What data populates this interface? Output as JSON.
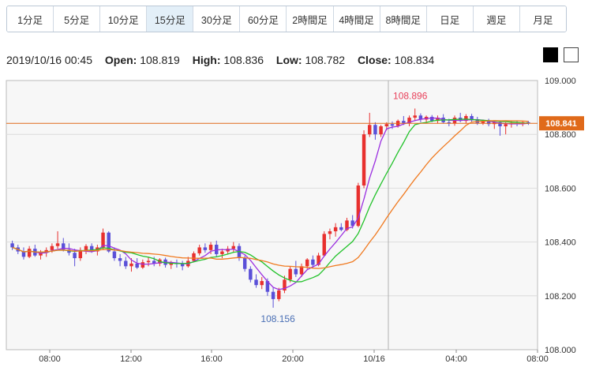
{
  "tabs": [
    {
      "label": "1分足",
      "active": false
    },
    {
      "label": "5分足",
      "active": false
    },
    {
      "label": "10分足",
      "active": false
    },
    {
      "label": "15分足",
      "active": true
    },
    {
      "label": "30分足",
      "active": false
    },
    {
      "label": "60分足",
      "active": false
    },
    {
      "label": "2時間足",
      "active": false
    },
    {
      "label": "4時間足",
      "active": false
    },
    {
      "label": "8時間足",
      "active": false
    },
    {
      "label": "日足",
      "active": false
    },
    {
      "label": "週足",
      "active": false
    },
    {
      "label": "月足",
      "active": false
    }
  ],
  "ohlc": {
    "datetime": "2019/10/16 00:45",
    "open_label": "Open:",
    "open": "108.819",
    "high_label": "High:",
    "high": "108.836",
    "low_label": "Low:",
    "low": "108.782",
    "close_label": "Close:",
    "close": "108.834"
  },
  "theme_buttons": [
    "black-theme",
    "white-theme"
  ],
  "chart_data": {
    "type": "candlestick",
    "y_ticks": [
      "109.000",
      "108.800",
      "108.600",
      "108.400",
      "108.200",
      "108.000"
    ],
    "ylim": [
      108.0,
      109.0
    ],
    "x_ticks": [
      "08:00",
      "12:00",
      "16:00",
      "20:00",
      "10/16",
      "04:00",
      "08:00"
    ],
    "current_price": "108.841",
    "max_label": "108.896",
    "min_label": "108.156",
    "colors": {
      "up": "#e8302e",
      "down": "#5a50d8",
      "ma_short": "#9b2fe0",
      "ma_mid": "#22c22a",
      "ma_long": "#f07a20",
      "price_line": "#e06a1a"
    },
    "candles": [
      [
        108.395,
        108.405,
        108.37,
        108.38
      ],
      [
        108.38,
        108.39,
        108.355,
        108.365
      ],
      [
        108.365,
        108.38,
        108.335,
        108.345
      ],
      [
        108.345,
        108.385,
        108.34,
        108.375
      ],
      [
        108.375,
        108.39,
        108.345,
        108.35
      ],
      [
        108.35,
        108.37,
        108.335,
        108.36
      ],
      [
        108.36,
        108.38,
        108.345,
        108.37
      ],
      [
        108.37,
        108.395,
        108.36,
        108.385
      ],
      [
        108.385,
        108.44,
        108.375,
        108.395
      ],
      [
        108.395,
        108.415,
        108.365,
        108.372
      ],
      [
        108.372,
        108.395,
        108.35,
        108.36
      ],
      [
        108.36,
        108.375,
        108.31,
        108.34
      ],
      [
        108.34,
        108.38,
        108.33,
        108.37
      ],
      [
        108.37,
        108.392,
        108.355,
        108.385
      ],
      [
        108.385,
        108.395,
        108.36,
        108.365
      ],
      [
        108.365,
        108.39,
        108.35,
        108.38
      ],
      [
        108.38,
        108.45,
        108.37,
        108.435
      ],
      [
        108.435,
        108.44,
        108.36,
        108.365
      ],
      [
        108.365,
        108.38,
        108.33,
        108.34
      ],
      [
        108.34,
        108.355,
        108.31,
        108.33
      ],
      [
        108.33,
        108.345,
        108.3,
        108.31
      ],
      [
        108.31,
        108.34,
        108.29,
        108.32
      ],
      [
        108.32,
        108.34,
        108.3,
        108.305
      ],
      [
        108.305,
        108.335,
        108.3,
        108.325
      ],
      [
        108.325,
        108.345,
        108.31,
        108.33
      ],
      [
        108.33,
        108.345,
        108.31,
        108.32
      ],
      [
        108.32,
        108.34,
        108.31,
        108.335
      ],
      [
        108.335,
        108.342,
        108.305,
        108.315
      ],
      [
        108.315,
        108.33,
        108.3,
        108.322
      ],
      [
        108.322,
        108.335,
        108.305,
        108.318
      ],
      [
        108.318,
        108.33,
        108.295,
        108.31
      ],
      [
        108.31,
        108.345,
        108.305,
        108.33
      ],
      [
        108.33,
        108.365,
        108.325,
        108.358
      ],
      [
        108.358,
        108.39,
        108.35,
        108.38
      ],
      [
        108.38,
        108.395,
        108.36,
        108.37
      ],
      [
        108.37,
        108.4,
        108.355,
        108.39
      ],
      [
        108.39,
        108.405,
        108.345,
        108.355
      ],
      [
        108.355,
        108.375,
        108.34,
        108.365
      ],
      [
        108.365,
        108.385,
        108.355,
        108.375
      ],
      [
        108.375,
        108.4,
        108.36,
        108.385
      ],
      [
        108.385,
        108.395,
        108.33,
        108.34
      ],
      [
        108.34,
        108.35,
        108.29,
        108.3
      ],
      [
        108.3,
        108.31,
        108.25,
        108.26
      ],
      [
        108.26,
        108.28,
        108.23,
        108.24
      ],
      [
        108.24,
        108.27,
        108.225,
        108.255
      ],
      [
        108.255,
        108.265,
        108.2,
        108.215
      ],
      [
        108.215,
        108.23,
        108.156,
        108.188
      ],
      [
        108.188,
        108.23,
        108.18,
        108.22
      ],
      [
        108.22,
        108.275,
        108.21,
        108.26
      ],
      [
        108.26,
        108.31,
        108.25,
        108.3
      ],
      [
        108.3,
        108.33,
        108.27,
        108.28
      ],
      [
        108.28,
        108.32,
        108.27,
        108.31
      ],
      [
        108.31,
        108.34,
        108.3,
        108.335
      ],
      [
        108.335,
        108.35,
        108.305,
        108.315
      ],
      [
        108.315,
        108.36,
        108.31,
        108.35
      ],
      [
        108.35,
        108.44,
        108.345,
        108.43
      ],
      [
        108.43,
        108.45,
        108.41,
        108.44
      ],
      [
        108.44,
        108.47,
        108.42,
        108.455
      ],
      [
        108.455,
        108.47,
        108.44,
        108.445
      ],
      [
        108.445,
        108.49,
        108.44,
        108.48
      ],
      [
        108.48,
        108.5,
        108.45,
        108.46
      ],
      [
        108.46,
        108.62,
        108.455,
        108.61
      ],
      [
        108.61,
        108.815,
        108.6,
        108.8
      ],
      [
        108.8,
        108.88,
        108.79,
        108.835
      ],
      [
        108.835,
        108.845,
        108.78,
        108.8
      ],
      [
        108.8,
        108.835,
        108.79,
        108.83
      ],
      [
        108.83,
        108.845,
        108.815,
        108.838
      ],
      [
        108.838,
        108.848,
        108.82,
        108.832
      ],
      [
        108.832,
        108.855,
        108.825,
        108.85
      ],
      [
        108.85,
        108.868,
        108.835,
        108.842
      ],
      [
        108.842,
        108.87,
        108.83,
        108.862
      ],
      [
        108.862,
        108.896,
        108.85,
        108.87
      ],
      [
        108.87,
        108.878,
        108.845,
        108.855
      ],
      [
        108.855,
        108.87,
        108.84,
        108.865
      ],
      [
        108.865,
        108.872,
        108.845,
        108.85
      ],
      [
        108.85,
        108.87,
        108.84,
        108.862
      ],
      [
        108.862,
        108.875,
        108.84,
        108.845
      ],
      [
        108.845,
        108.858,
        108.83,
        108.84
      ],
      [
        108.84,
        108.87,
        108.832,
        108.862
      ],
      [
        108.862,
        108.88,
        108.845,
        108.85
      ],
      [
        108.85,
        108.875,
        108.84,
        108.868
      ],
      [
        108.868,
        108.876,
        108.845,
        108.852
      ],
      [
        108.852,
        108.865,
        108.835,
        108.842
      ],
      [
        108.842,
        108.855,
        108.835,
        108.85
      ],
      [
        108.85,
        108.858,
        108.83,
        108.838
      ],
      [
        108.838,
        108.85,
        108.82,
        108.845
      ],
      [
        108.845,
        108.852,
        108.795,
        108.83
      ],
      [
        108.83,
        108.845,
        108.8,
        108.838
      ],
      [
        108.838,
        108.85,
        108.825,
        108.842
      ],
      [
        108.842,
        108.85,
        108.83,
        108.84
      ],
      [
        108.84,
        108.848,
        108.83,
        108.845
      ],
      [
        108.845,
        108.85,
        108.835,
        108.841
      ]
    ]
  }
}
